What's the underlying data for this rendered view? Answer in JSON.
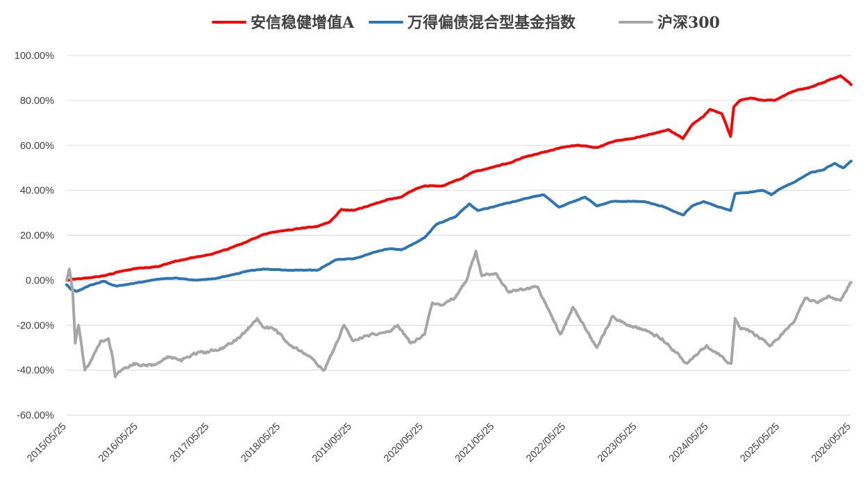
{
  "chart_data": {
    "type": "line",
    "title": "",
    "xlabel": "",
    "ylabel": "",
    "ylim": [
      -60,
      100
    ],
    "y_ticks": [
      100,
      80,
      60,
      40,
      20,
      0,
      -20,
      -40,
      -60
    ],
    "y_tick_labels": [
      "100.00%",
      "80.00%",
      "60.00%",
      "40.00%",
      "20.00%",
      "0.00%",
      "-20.00%",
      "-40.00%",
      "-60.00%"
    ],
    "x_tick_labels": [
      "2015/05/25",
      "2016/05/25",
      "2017/05/25",
      "2018/05/25",
      "2019/05/25",
      "2020/05/25",
      "2021/05/25",
      "2022/05/25",
      "2023/05/25",
      "2024/05/25",
      "2025/05/25",
      "2026/05/25"
    ],
    "xlim": [
      "2015/05/25",
      "2026/05/25"
    ],
    "grid": "horizontal",
    "legend_position": "top",
    "series": [
      {
        "name": "安信稳健增值A",
        "color": "#ff0000",
        "points": [
          [
            "2015/05/25",
            0
          ],
          [
            "2015/09/01",
            1
          ],
          [
            "2015/12/01",
            2
          ],
          [
            "2016/03/01",
            4
          ],
          [
            "2016/06/01",
            5.5
          ],
          [
            "2016/09/01",
            6
          ],
          [
            "2016/12/01",
            8.5
          ],
          [
            "2017/03/01",
            10
          ],
          [
            "2017/06/01",
            11.5
          ],
          [
            "2017/09/01",
            14
          ],
          [
            "2017/12/01",
            17
          ],
          [
            "2018/03/01",
            20.5
          ],
          [
            "2018/06/01",
            22
          ],
          [
            "2018/09/01",
            23
          ],
          [
            "2018/12/01",
            24
          ],
          [
            "2019/02/01",
            26
          ],
          [
            "2019/04/01",
            31.5
          ],
          [
            "2019/06/01",
            31
          ],
          [
            "2019/09/01",
            33.5
          ],
          [
            "2019/12/01",
            36
          ],
          [
            "2020/02/01",
            37
          ],
          [
            "2020/04/01",
            40
          ],
          [
            "2020/06/01",
            42
          ],
          [
            "2020/09/01",
            42
          ],
          [
            "2020/12/01",
            45
          ],
          [
            "2021/02/01",
            48
          ],
          [
            "2021/05/01",
            50
          ],
          [
            "2021/08/01",
            52
          ],
          [
            "2021/11/01",
            55
          ],
          [
            "2022/02/01",
            57
          ],
          [
            "2022/05/01",
            59
          ],
          [
            "2022/08/01",
            60
          ],
          [
            "2022/11/01",
            59
          ],
          [
            "2023/02/01",
            62
          ],
          [
            "2023/05/01",
            63
          ],
          [
            "2023/08/01",
            65
          ],
          [
            "2023/11/01",
            67
          ],
          [
            "2024/01/15",
            63
          ],
          [
            "2024/03/01",
            69
          ],
          [
            "2024/05/01",
            73
          ],
          [
            "2024/06/01",
            76
          ],
          [
            "2024/08/01",
            74
          ],
          [
            "2024/09/15",
            64
          ],
          [
            "2024/10/01",
            77
          ],
          [
            "2024/11/01",
            80
          ],
          [
            "2025/01/01",
            81
          ],
          [
            "2025/03/01",
            80
          ],
          [
            "2025/05/01",
            80
          ],
          [
            "2025/08/01",
            84
          ],
          [
            "2025/11/01",
            86
          ],
          [
            "2026/02/01",
            89
          ],
          [
            "2026/04/01",
            91
          ],
          [
            "2026/05/25",
            87
          ]
        ]
      },
      {
        "name": "万得偏债混合型基金指数",
        "color": "#2e75b6",
        "points": [
          [
            "2015/05/25",
            -2
          ],
          [
            "2015/06/15",
            -4
          ],
          [
            "2015/07/15",
            -5
          ],
          [
            "2015/10/01",
            -2
          ],
          [
            "2015/12/01",
            -0.5
          ],
          [
            "2016/02/01",
            -2.5
          ],
          [
            "2016/05/01",
            -1.5
          ],
          [
            "2016/09/01",
            0.5
          ],
          [
            "2016/12/01",
            1
          ],
          [
            "2017/03/01",
            0
          ],
          [
            "2017/06/01",
            0.5
          ],
          [
            "2017/09/01",
            2
          ],
          [
            "2017/12/01",
            4
          ],
          [
            "2018/03/01",
            5
          ],
          [
            "2018/06/01",
            4.5
          ],
          [
            "2018/09/01",
            4.5
          ],
          [
            "2018/12/01",
            4.5
          ],
          [
            "2019/03/01",
            9
          ],
          [
            "2019/06/01",
            9.5
          ],
          [
            "2019/09/01",
            12
          ],
          [
            "2019/12/01",
            14
          ],
          [
            "2020/02/01",
            13.5
          ],
          [
            "2020/04/01",
            16
          ],
          [
            "2020/06/01",
            19
          ],
          [
            "2020/08/01",
            25
          ],
          [
            "2020/11/01",
            28
          ],
          [
            "2021/01/15",
            34
          ],
          [
            "2021/03/01",
            31
          ],
          [
            "2021/06/01",
            33
          ],
          [
            "2021/09/01",
            35
          ],
          [
            "2021/12/01",
            37
          ],
          [
            "2022/02/01",
            38
          ],
          [
            "2022/04/20",
            32.5
          ],
          [
            "2022/07/01",
            35
          ],
          [
            "2022/09/01",
            37
          ],
          [
            "2022/11/01",
            33
          ],
          [
            "2023/01/15",
            35
          ],
          [
            "2023/04/01",
            35
          ],
          [
            "2023/07/01",
            35
          ],
          [
            "2023/10/01",
            33
          ],
          [
            "2024/01/15",
            29
          ],
          [
            "2024/03/01",
            33
          ],
          [
            "2024/05/01",
            35
          ],
          [
            "2024/07/01",
            33
          ],
          [
            "2024/09/15",
            31
          ],
          [
            "2024/10/08",
            38.5
          ],
          [
            "2024/12/01",
            39
          ],
          [
            "2025/03/01",
            40
          ],
          [
            "2025/04/10",
            38
          ],
          [
            "2025/06/01",
            41
          ],
          [
            "2025/09/01",
            45
          ],
          [
            "2025/11/01",
            48
          ],
          [
            "2026/01/01",
            49
          ],
          [
            "2026/03/01",
            52
          ],
          [
            "2026/04/15",
            50
          ],
          [
            "2026/05/25",
            53
          ]
        ]
      },
      {
        "name": "沪深300",
        "color": "#a6a6a6",
        "points": [
          [
            "2015/05/25",
            0
          ],
          [
            "2015/06/08",
            5
          ],
          [
            "2015/06/25",
            -5
          ],
          [
            "2015/07/08",
            -28
          ],
          [
            "2015/07/25",
            -20
          ],
          [
            "2015/08/26",
            -40
          ],
          [
            "2015/10/01",
            -35
          ],
          [
            "2015/11/15",
            -27
          ],
          [
            "2015/12/25",
            -26
          ],
          [
            "2016/01/15",
            -34
          ],
          [
            "2016/01/29",
            -43
          ],
          [
            "2016/03/01",
            -40
          ],
          [
            "2016/05/01",
            -37
          ],
          [
            "2016/08/01",
            -38
          ],
          [
            "2016/11/01",
            -34
          ],
          [
            "2017/01/01",
            -36
          ],
          [
            "2017/03/01",
            -33
          ],
          [
            "2017/05/01",
            -32
          ],
          [
            "2017/08/01",
            -30
          ],
          [
            "2017/11/01",
            -25
          ],
          [
            "2018/01/25",
            -17
          ],
          [
            "2018/03/01",
            -21
          ],
          [
            "2018/05/01",
            -22
          ],
          [
            "2018/07/01",
            -28
          ],
          [
            "2018/10/01",
            -33
          ],
          [
            "2019/01/03",
            -40
          ],
          [
            "2019/02/15",
            -32
          ],
          [
            "2019/04/15",
            -20
          ],
          [
            "2019/06/01",
            -27
          ],
          [
            "2019/09/01",
            -24
          ],
          [
            "2019/12/01",
            -23
          ],
          [
            "2020/01/15",
            -20
          ],
          [
            "2020/03/20",
            -28
          ],
          [
            "2020/06/01",
            -24
          ],
          [
            "2020/07/10",
            -10
          ],
          [
            "2020/09/01",
            -11
          ],
          [
            "2020/11/01",
            -8
          ],
          [
            "2021/01/01",
            0
          ],
          [
            "2021/02/18",
            13
          ],
          [
            "2021/03/20",
            2
          ],
          [
            "2021/06/01",
            3
          ],
          [
            "2021/08/01",
            -5
          ],
          [
            "2021/11/01",
            -4
          ],
          [
            "2022/01/01",
            -3
          ],
          [
            "2022/04/26",
            -24
          ],
          [
            "2022/07/01",
            -12
          ],
          [
            "2022/10/31",
            -30
          ],
          [
            "2023/01/20",
            -16
          ],
          [
            "2023/04/01",
            -20
          ],
          [
            "2023/07/01",
            -22
          ],
          [
            "2023/10/01",
            -26
          ],
          [
            "2024/02/05",
            -37
          ],
          [
            "2024/05/15",
            -29
          ],
          [
            "2024/07/01",
            -32
          ],
          [
            "2024/09/18",
            -37
          ],
          [
            "2024/10/08",
            -17
          ],
          [
            "2024/11/01",
            -21
          ],
          [
            "2025/01/01",
            -23
          ],
          [
            "2025/04/08",
            -29
          ],
          [
            "2025/06/01",
            -24
          ],
          [
            "2025/08/15",
            -17
          ],
          [
            "2025/10/01",
            -8
          ],
          [
            "2025/12/01",
            -10
          ],
          [
            "2026/02/01",
            -7
          ],
          [
            "2026/04/01",
            -9
          ],
          [
            "2026/05/25",
            -1
          ]
        ]
      }
    ]
  }
}
